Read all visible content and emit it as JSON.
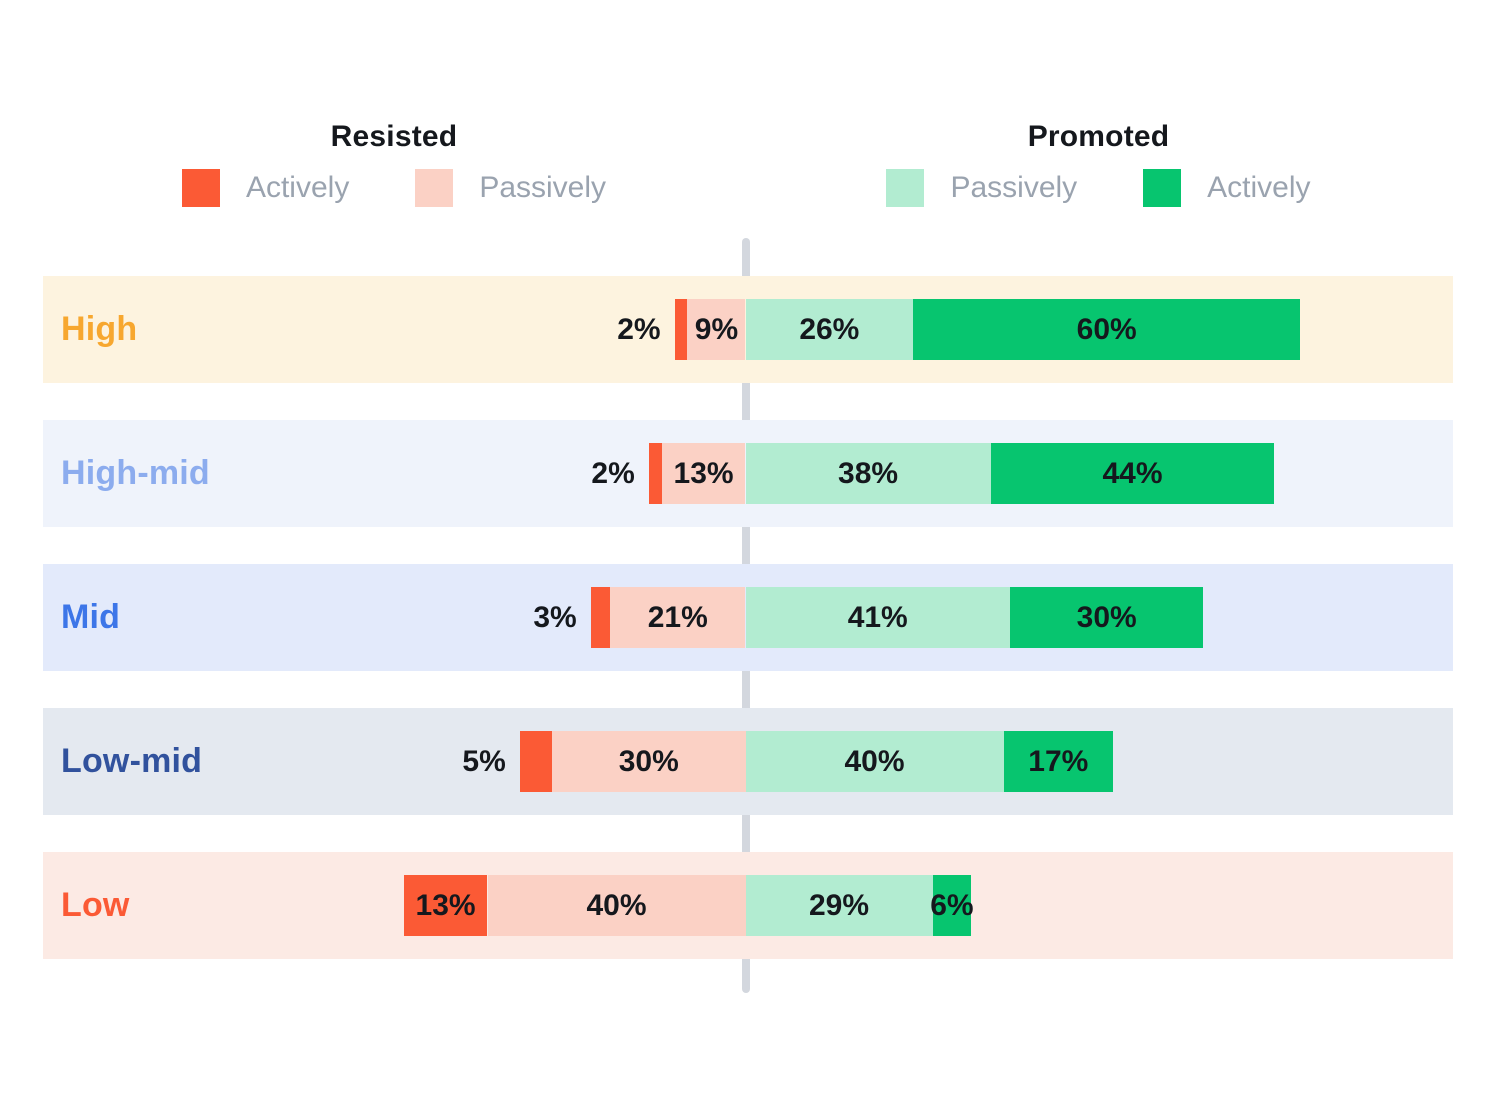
{
  "legend": {
    "resisted": {
      "title": "Resisted",
      "items": [
        {
          "label": "Actively",
          "color": "#fb5a35"
        },
        {
          "label": "Passively",
          "color": "#fbd1c5"
        }
      ]
    },
    "promoted": {
      "title": "Promoted",
      "items": [
        {
          "label": "Passively",
          "color": "#b2ecd1"
        },
        {
          "label": "Actively",
          "color": "#07c56f"
        }
      ]
    }
  },
  "chart_data": {
    "type": "diverging-stacked-bar",
    "unit": "%",
    "orientation": "horizontal",
    "center_axis": {
      "style": "dashed",
      "color": "#d3d7de"
    },
    "categories": [
      "High",
      "High-mid",
      "Mid",
      "Low-mid",
      "Low"
    ],
    "series": [
      {
        "name": "Actively resisted",
        "side": "left",
        "color": "#fb5a35",
        "values": [
          2,
          2,
          3,
          5,
          13
        ]
      },
      {
        "name": "Passively resisted",
        "side": "left",
        "color": "#fbd1c5",
        "values": [
          9,
          13,
          21,
          30,
          40
        ]
      },
      {
        "name": "Passively promoted",
        "side": "right",
        "color": "#b2ecd1",
        "values": [
          26,
          38,
          41,
          40,
          29
        ]
      },
      {
        "name": "Actively promoted",
        "side": "right",
        "color": "#07c56f",
        "values": [
          60,
          44,
          30,
          17,
          6
        ]
      }
    ],
    "row_styles": [
      {
        "label_color": "#f7a72f",
        "band_color": "#fdf3df"
      },
      {
        "label_color": "#8cacee",
        "band_color": "#eff3fb"
      },
      {
        "label_color": "#3d76e8",
        "band_color": "#e3eafb"
      },
      {
        "label_color": "#31529d",
        "band_color": "#e4e9f0"
      },
      {
        "label_color": "#fb5a35",
        "band_color": "#fceae4"
      }
    ],
    "value_labels": {
      "High": [
        "2%",
        "9%",
        "26%",
        "60%"
      ],
      "High-mid": [
        "2%",
        "13%",
        "38%",
        "44%"
      ],
      "Mid": [
        "3%",
        "21%",
        "41%",
        "30%"
      ],
      "Low-mid": [
        "5%",
        "30%",
        "40%",
        "17%"
      ],
      "Low": [
        "13%",
        "40%",
        "29%",
        "6%"
      ]
    }
  }
}
